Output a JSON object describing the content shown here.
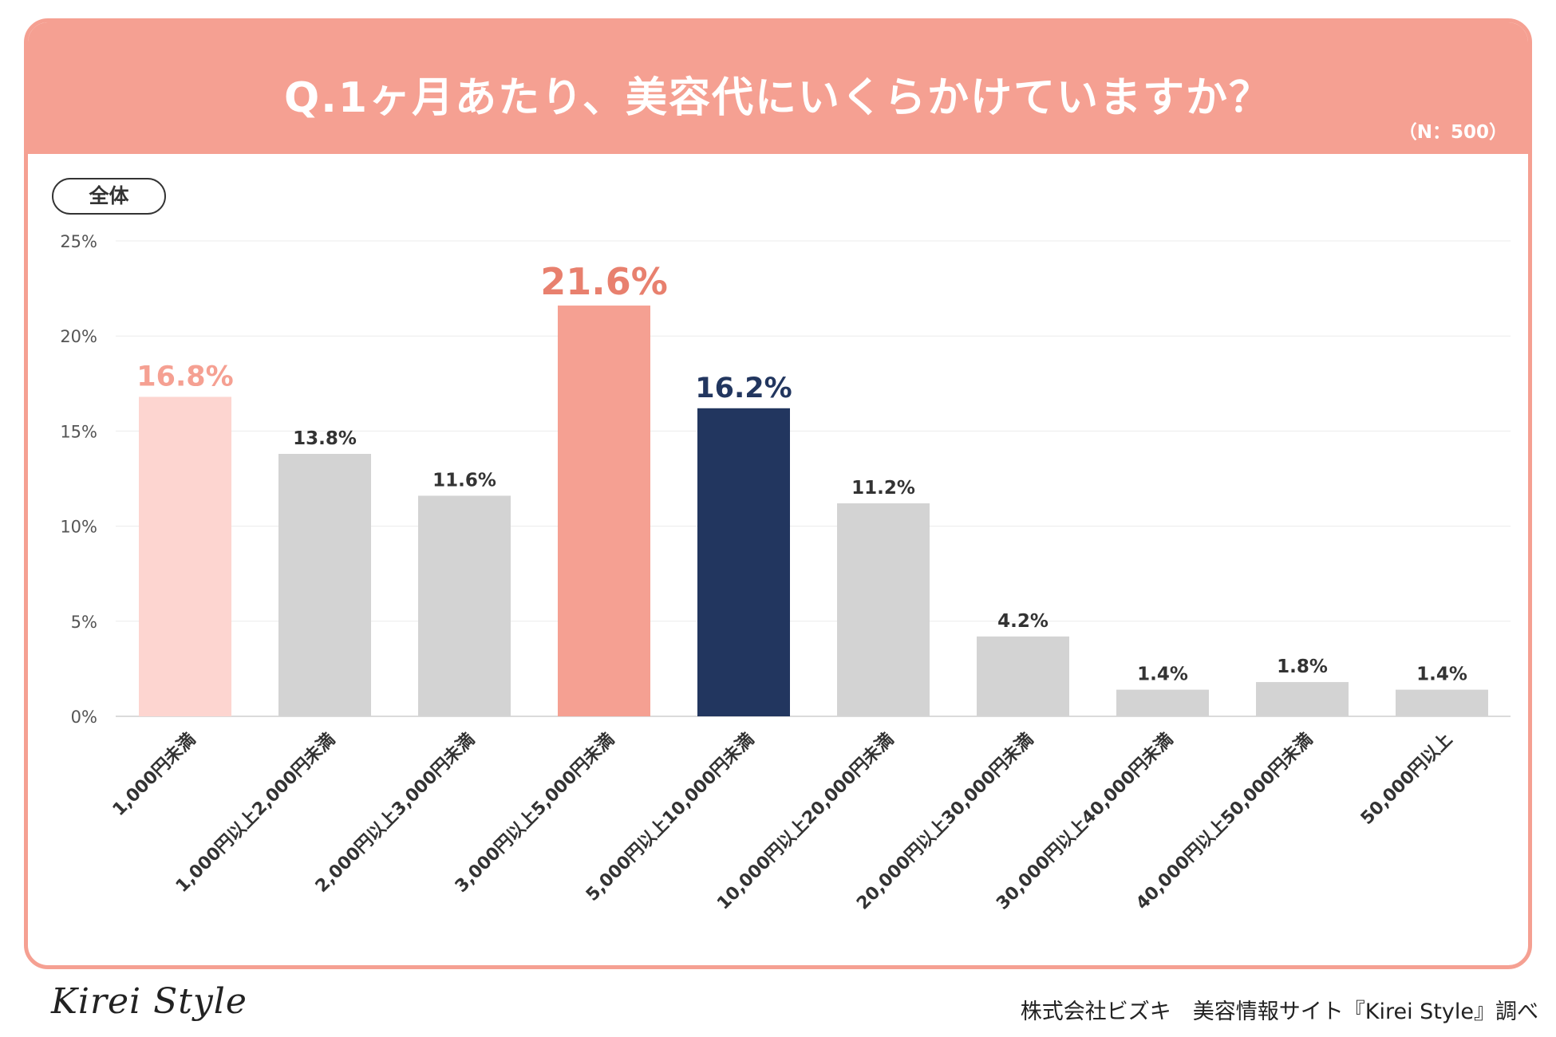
{
  "header": {
    "title": "Q.1ヶ月あたり、美容代にいくらかけていますか？",
    "sample_size": "（N：500）"
  },
  "segment_label": "全体",
  "footer": {
    "brand": "Kirei Style",
    "credit": "株式会社ビズキ　美容情報サイト『Kirei Style』調べ"
  },
  "colors": {
    "header_bg": "#f5a092",
    "bar_gray": "#d3d3d3",
    "bar_light_pink": "#fdd5d0",
    "bar_salmon": "#f5a092",
    "bar_navy": "#22365f",
    "label_default": "#333333",
    "label_light_pink": "#f5a092",
    "label_salmon": "#e8806e",
    "label_navy": "#22365f"
  },
  "chart_data": {
    "type": "bar",
    "title": "Q.1ヶ月あたり、美容代にいくらかけていますか？",
    "xlabel": "",
    "ylabel": "",
    "ylim": [
      0,
      25
    ],
    "yticks": [
      0,
      5,
      10,
      15,
      20,
      25
    ],
    "ytick_labels": [
      "0%",
      "5%",
      "10%",
      "15%",
      "20%",
      "25%"
    ],
    "grid": true,
    "categories": [
      "1,000円未満",
      "1,000円以上2,000円未満",
      "2,000円以上3,000円未満",
      "3,000円以上5,000円未満",
      "5,000円以上10,000円未満",
      "10,000円以上20,000円未満",
      "20,000円以上30,000円未満",
      "30,000円以上40,000円未満",
      "40,000円以上50,000円未満",
      "50,000円以上"
    ],
    "values": [
      16.8,
      13.8,
      11.6,
      21.6,
      16.2,
      11.2,
      4.2,
      1.4,
      1.8,
      1.4
    ],
    "value_labels": [
      "16.8%",
      "13.8%",
      "11.6%",
      "21.6%",
      "16.2%",
      "11.2%",
      "4.2%",
      "1.4%",
      "1.8%",
      "1.4%"
    ],
    "bar_colors": [
      "#fdd5d0",
      "#d3d3d3",
      "#d3d3d3",
      "#f5a092",
      "#22365f",
      "#d3d3d3",
      "#d3d3d3",
      "#d3d3d3",
      "#d3d3d3",
      "#d3d3d3"
    ],
    "label_colors": [
      "#f5a092",
      "#333333",
      "#333333",
      "#e8806e",
      "#22365f",
      "#333333",
      "#333333",
      "#333333",
      "#333333",
      "#333333"
    ],
    "highlight": [
      true,
      false,
      false,
      true,
      true,
      false,
      false,
      false,
      false,
      false
    ]
  }
}
